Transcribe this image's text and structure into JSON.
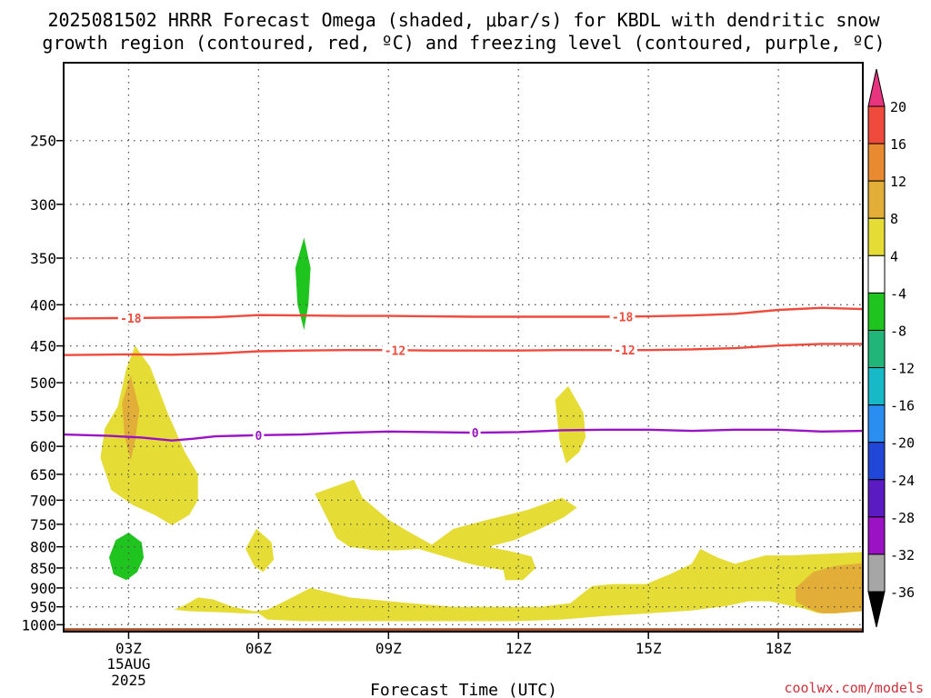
{
  "chart_data": {
    "type": "area",
    "title": [
      "2025081502 HRRR Forecast Omega (shaded, μbar/s) for KBDL with dendritic snow",
      "growth region (contoured, red, ºC) and freezing level (contoured, purple, ºC)"
    ],
    "xlabel": "Forecast Time (UTC)",
    "ylabel": "",
    "credit": "coolwx.com/models",
    "x_ticks": [
      "03Z",
      "06Z",
      "09Z",
      "12Z",
      "15Z",
      "18Z"
    ],
    "x_tick_hours": [
      3,
      6,
      9,
      12,
      15,
      18
    ],
    "x_date_lines": [
      "15AUG",
      "2025"
    ],
    "xlim": [
      1.5,
      19.95
    ],
    "y_ticks": [
      250,
      300,
      350,
      400,
      450,
      500,
      550,
      600,
      650,
      700,
      750,
      800,
      850,
      900,
      950,
      1000
    ],
    "ylim": [
      200,
      1020
    ],
    "y_scale": "log",
    "grid": true,
    "ground_pressure": 1010,
    "ground_color": "#a5502a",
    "colorbar": {
      "labels": [
        "20",
        "16",
        "12",
        "8",
        "4",
        "-4",
        "-8",
        "-12",
        "-16",
        "-20",
        "-24",
        "-28",
        "-32",
        "-36"
      ],
      "colors": [
        "#e8347f",
        "#ef4a3c",
        "#ea8a30",
        "#e3ae37",
        "#e5dc35",
        "#ffffff",
        "#1fc41f",
        "#22b57a",
        "#18b9c6",
        "#2a8ef0",
        "#2147d8",
        "#5a1cc2",
        "#9a12c4",
        "#a6a6a6",
        "#000000"
      ]
    },
    "shaded": [
      {
        "level": "4 to 8",
        "color": "#e5dc35",
        "points": [
          [
            2.75,
            535
          ],
          [
            2.95,
            480
          ],
          [
            3.15,
            450
          ],
          [
            3.5,
            478
          ],
          [
            3.9,
            545
          ],
          [
            4.3,
            610
          ],
          [
            4.6,
            650
          ],
          [
            4.6,
            700
          ],
          [
            4.4,
            730
          ],
          [
            4.0,
            752
          ],
          [
            3.6,
            730
          ],
          [
            3.1,
            710
          ],
          [
            2.6,
            680
          ],
          [
            2.35,
            620
          ],
          [
            2.45,
            570
          ]
        ]
      },
      {
        "level": "8 to 12",
        "color": "#e3ae37",
        "points": [
          [
            3.05,
            490
          ],
          [
            3.25,
            540
          ],
          [
            3.15,
            590
          ],
          [
            3.05,
            625
          ],
          [
            2.9,
            580
          ],
          [
            2.85,
            530
          ]
        ]
      },
      {
        "level": "-8 to -4",
        "color": "#1fc41f",
        "points": [
          [
            7.05,
            330
          ],
          [
            7.2,
            360
          ],
          [
            7.15,
            400
          ],
          [
            7.05,
            430
          ],
          [
            6.9,
            400
          ],
          [
            6.85,
            360
          ]
        ]
      },
      {
        "level": "-8 to -4",
        "color": "#1fc41f",
        "points": [
          [
            3.0,
            768
          ],
          [
            3.3,
            790
          ],
          [
            3.35,
            825
          ],
          [
            3.2,
            860
          ],
          [
            2.95,
            880
          ],
          [
            2.65,
            865
          ],
          [
            2.55,
            825
          ],
          [
            2.7,
            785
          ]
        ]
      },
      {
        "level": "4 to 8",
        "color": "#e5dc35",
        "points": [
          [
            13.15,
            505
          ],
          [
            13.5,
            545
          ],
          [
            13.55,
            585
          ],
          [
            13.4,
            610
          ],
          [
            13.1,
            630
          ],
          [
            12.95,
            590
          ],
          [
            12.85,
            525
          ]
        ]
      },
      {
        "level": "4 to 8",
        "color": "#e5dc35",
        "points": [
          [
            5.95,
            760
          ],
          [
            6.3,
            790
          ],
          [
            6.35,
            830
          ],
          [
            6.1,
            860
          ],
          [
            5.9,
            845
          ],
          [
            5.7,
            805
          ]
        ]
      },
      {
        "level": "4 to 8",
        "color": "#e5dc35",
        "points": [
          [
            7.3,
            687
          ],
          [
            8.2,
            660
          ],
          [
            8.4,
            695
          ],
          [
            9.0,
            740
          ],
          [
            9.5,
            768
          ],
          [
            10.0,
            795
          ],
          [
            10.5,
            760
          ],
          [
            11.3,
            740
          ],
          [
            12.2,
            720
          ],
          [
            13.0,
            695
          ],
          [
            13.35,
            715
          ],
          [
            13.05,
            735
          ],
          [
            12.5,
            760
          ],
          [
            11.9,
            785
          ],
          [
            11.3,
            800
          ],
          [
            11.8,
            810
          ],
          [
            12.3,
            822
          ],
          [
            12.4,
            850
          ],
          [
            12.1,
            880
          ],
          [
            11.7,
            880
          ],
          [
            11.65,
            855
          ],
          [
            11.1,
            845
          ],
          [
            10.8,
            838
          ],
          [
            10.2,
            820
          ],
          [
            9.7,
            805
          ],
          [
            9.2,
            808
          ],
          [
            8.7,
            808
          ],
          [
            8.1,
            800
          ],
          [
            7.8,
            780
          ],
          [
            7.6,
            740
          ]
        ]
      },
      {
        "level": "4 to 8",
        "color": "#e5dc35",
        "points": [
          [
            4.05,
            958
          ],
          [
            4.3,
            945
          ],
          [
            4.6,
            925
          ],
          [
            4.95,
            930
          ],
          [
            5.4,
            950
          ],
          [
            5.9,
            962
          ],
          [
            6.2,
            958
          ],
          [
            6.6,
            935
          ],
          [
            7.2,
            900
          ],
          [
            8.1,
            925
          ],
          [
            9.5,
            940
          ],
          [
            10.5,
            950
          ],
          [
            11.5,
            950
          ],
          [
            12.5,
            950
          ],
          [
            13.2,
            940
          ],
          [
            13.7,
            895
          ],
          [
            14.2,
            890
          ],
          [
            14.95,
            890
          ],
          [
            15.5,
            865
          ],
          [
            16.0,
            840
          ],
          [
            16.2,
            805
          ],
          [
            16.6,
            825
          ],
          [
            17.0,
            840
          ],
          [
            17.7,
            820
          ],
          [
            18.3,
            820
          ],
          [
            19.95,
            812
          ],
          [
            19.95,
            960
          ],
          [
            19.3,
            968
          ],
          [
            18.9,
            967
          ],
          [
            18.6,
            955
          ],
          [
            18.2,
            945
          ],
          [
            17.8,
            935
          ],
          [
            17.3,
            935
          ],
          [
            16.8,
            948
          ],
          [
            16.0,
            960
          ],
          [
            15.0,
            968
          ],
          [
            14.0,
            975
          ],
          [
            13.0,
            985
          ],
          [
            12.0,
            990
          ],
          [
            11.0,
            990
          ],
          [
            10.0,
            990
          ],
          [
            9.0,
            990
          ],
          [
            8.0,
            990
          ],
          [
            7.0,
            990
          ],
          [
            6.2,
            985
          ],
          [
            6.0,
            968
          ],
          [
            5.6,
            968
          ],
          [
            5.2,
            965
          ],
          [
            4.8,
            964
          ],
          [
            4.4,
            962
          ]
        ]
      },
      {
        "level": "8 to 12",
        "color": "#e3ae37",
        "points": [
          [
            18.4,
            900
          ],
          [
            18.8,
            860
          ],
          [
            19.3,
            845
          ],
          [
            19.95,
            838
          ],
          [
            19.95,
            962
          ],
          [
            19.3,
            968
          ],
          [
            19.0,
            968
          ],
          [
            18.7,
            955
          ],
          [
            18.4,
            935
          ]
        ]
      }
    ],
    "contours": [
      {
        "value": -18,
        "label": "-18",
        "color": "#ef4a3c",
        "x": [
          1.5,
          3.0,
          4.0,
          5.0,
          6.0,
          7.0,
          8.0,
          9.0,
          10.0,
          11.0,
          12.0,
          13.0,
          14.0,
          15.0,
          16.0,
          17.0,
          18.0,
          19.0,
          19.95
        ],
        "y": [
          416,
          415.5,
          415,
          414.5,
          412,
          412.5,
          413,
          413,
          413.5,
          414,
          414,
          414,
          414,
          413.5,
          412.5,
          410.5,
          406,
          403.5,
          405
        ],
        "label_x": [
          3.05,
          14.4
        ]
      },
      {
        "value": -12,
        "label": "-12",
        "color": "#ef4a3c",
        "x": [
          1.5,
          3.0,
          4.0,
          5.0,
          6.0,
          7.0,
          8.0,
          9.0,
          10.0,
          11.0,
          12.0,
          13.0,
          14.0,
          15.0,
          16.0,
          17.0,
          18.0,
          19.0,
          19.95
        ],
        "y": [
          462,
          461,
          461.5,
          460,
          457,
          456,
          455.5,
          455.5,
          456,
          456,
          456,
          455.5,
          455.5,
          455.5,
          454.5,
          453,
          449.5,
          447.5,
          447.5
        ],
        "label_x": [
          9.15,
          14.45
        ]
      },
      {
        "value": 0,
        "label": "0",
        "color": "#9a12c4",
        "x": [
          1.5,
          2.5,
          3.3,
          4.0,
          4.5,
          5.0,
          6.0,
          7.0,
          8.0,
          9.0,
          10.0,
          11.0,
          12.0,
          13.0,
          14.0,
          15.0,
          16.0,
          17.0,
          18.0,
          19.0,
          19.95
        ],
        "y": [
          580,
          582,
          585,
          590,
          587,
          583,
          581,
          580,
          577,
          575,
          576,
          577,
          576,
          573,
          572,
          572,
          574,
          572,
          572,
          575,
          574
        ],
        "label_x": [
          6.0,
          11.0
        ]
      }
    ]
  }
}
